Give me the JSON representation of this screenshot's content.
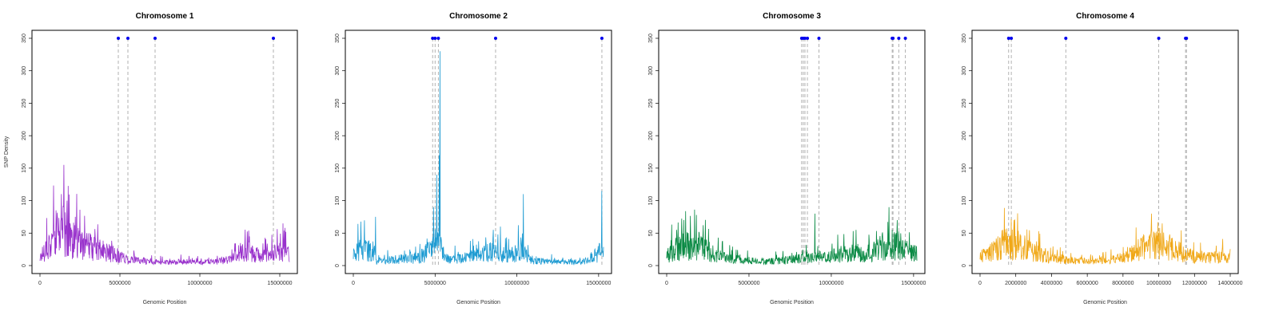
{
  "chart_data": [
    {
      "type": "line",
      "title": "Chromosome 1",
      "xlabel": "Genomic Position",
      "ylabel": "SNP Density",
      "color": "#9932CC",
      "xlim": [
        0,
        15600000
      ],
      "ylim": [
        0,
        350
      ],
      "xticks": [
        0,
        5000000,
        10000000,
        15000000
      ],
      "xtick_labels": [
        "0",
        "5000000",
        "10000000",
        "15000000"
      ],
      "yticks": [
        0,
        50,
        100,
        150,
        200,
        250,
        300,
        350
      ],
      "ytick_labels": [
        "0",
        "50",
        "100",
        "150",
        "200",
        "250",
        "300",
        "350"
      ],
      "markers_y": 350,
      "markers_x": [
        4900000,
        5500000,
        7200000,
        14600000
      ],
      "density_profile": [
        [
          0,
          12
        ],
        [
          400000,
          28
        ],
        [
          800000,
          40
        ],
        [
          1200000,
          50
        ],
        [
          1500000,
          55
        ],
        [
          1700000,
          45
        ],
        [
          2000000,
          40
        ],
        [
          2500000,
          35
        ],
        [
          3000000,
          30
        ],
        [
          3500000,
          25
        ],
        [
          4000000,
          22
        ],
        [
          4500000,
          18
        ],
        [
          5000000,
          14
        ],
        [
          5500000,
          10
        ],
        [
          6000000,
          8
        ],
        [
          7000000,
          6
        ],
        [
          8000000,
          5
        ],
        [
          9000000,
          6
        ],
        [
          10000000,
          5
        ],
        [
          11000000,
          6
        ],
        [
          12000000,
          10
        ],
        [
          12500000,
          20
        ],
        [
          13000000,
          22
        ],
        [
          13500000,
          15
        ],
        [
          14000000,
          14
        ],
        [
          14500000,
          18
        ],
        [
          15000000,
          22
        ],
        [
          15600000,
          20
        ]
      ],
      "spikes": [
        [
          1500000,
          155
        ],
        [
          1350000,
          110
        ],
        [
          1700000,
          100
        ],
        [
          2200000,
          75
        ],
        [
          1000000,
          85
        ],
        [
          15200000,
          65
        ],
        [
          13100000,
          45
        ]
      ]
    },
    {
      "type": "line",
      "title": "Chromosome 2",
      "xlabel": "Genomic Position",
      "ylabel": "",
      "color": "#1E9BD2",
      "xlim": [
        0,
        15300000
      ],
      "ylim": [
        0,
        350
      ],
      "xticks": [
        0,
        5000000,
        10000000,
        15000000
      ],
      "xtick_labels": [
        "0",
        "5000000",
        "10000000",
        "15000000"
      ],
      "yticks": [
        0,
        50,
        100,
        150,
        200,
        250,
        300,
        350
      ],
      "ytick_labels": [
        "0",
        "50",
        "100",
        "150",
        "200",
        "250",
        "300",
        "350"
      ],
      "markers_y": 350,
      "markers_x": [
        4850000,
        5000000,
        5200000,
        8700000,
        15200000
      ],
      "density_profile": [
        [
          0,
          15
        ],
        [
          300000,
          22
        ],
        [
          700000,
          25
        ],
        [
          1000000,
          22
        ],
        [
          1300000,
          18
        ],
        [
          1400000,
          6
        ],
        [
          2000000,
          8
        ],
        [
          3000000,
          10
        ],
        [
          4000000,
          12
        ],
        [
          4500000,
          20
        ],
        [
          4800000,
          30
        ],
        [
          5000000,
          35
        ],
        [
          5300000,
          30
        ],
        [
          5600000,
          15
        ],
        [
          6000000,
          10
        ],
        [
          7000000,
          12
        ],
        [
          8000000,
          18
        ],
        [
          8600000,
          25
        ],
        [
          9000000,
          20
        ],
        [
          9500000,
          15
        ],
        [
          10000000,
          20
        ],
        [
          10300000,
          30
        ],
        [
          10600000,
          15
        ],
        [
          11000000,
          8
        ],
        [
          12000000,
          6
        ],
        [
          13000000,
          5
        ],
        [
          14000000,
          6
        ],
        [
          14800000,
          15
        ],
        [
          15300000,
          25
        ]
      ],
      "spikes": [
        [
          5300000,
          330
        ],
        [
          5250000,
          170
        ],
        [
          5100000,
          140
        ],
        [
          1350000,
          75
        ],
        [
          10400000,
          110
        ],
        [
          15200000,
          115
        ],
        [
          9000000,
          60
        ],
        [
          4900000,
          90
        ]
      ]
    },
    {
      "type": "line",
      "title": "Chromosome 3",
      "xlabel": "Genomic Position",
      "ylabel": "",
      "color": "#0A8A44",
      "xlim": [
        0,
        15200000
      ],
      "ylim": [
        0,
        350
      ],
      "xticks": [
        0,
        5000000,
        10000000,
        15000000
      ],
      "xtick_labels": [
        "0",
        "5000000",
        "10000000",
        "15000000"
      ],
      "yticks": [
        0,
        50,
        100,
        150,
        200,
        250,
        300,
        350
      ],
      "ytick_labels": [
        "0",
        "50",
        "100",
        "150",
        "200",
        "250",
        "300",
        "350"
      ],
      "markers_y": 350,
      "markers_x": [
        8200000,
        8300000,
        8400000,
        8550000,
        9250000,
        13700000,
        13750000,
        14100000,
        14500000
      ],
      "density_profile": [
        [
          0,
          15
        ],
        [
          500000,
          25
        ],
        [
          1000000,
          30
        ],
        [
          1500000,
          28
        ],
        [
          2000000,
          30
        ],
        [
          2500000,
          22
        ],
        [
          3000000,
          15
        ],
        [
          4000000,
          10
        ],
        [
          5000000,
          8
        ],
        [
          6000000,
          6
        ],
        [
          7000000,
          8
        ],
        [
          8000000,
          10
        ],
        [
          9000000,
          12
        ],
        [
          10000000,
          15
        ],
        [
          11000000,
          18
        ],
        [
          12000000,
          20
        ],
        [
          13000000,
          25
        ],
        [
          14000000,
          28
        ],
        [
          14500000,
          22
        ],
        [
          15200000,
          20
        ]
      ],
      "spikes": [
        [
          1800000,
          78
        ],
        [
          9000000,
          80
        ],
        [
          13500000,
          90
        ],
        [
          14000000,
          70
        ],
        [
          600000,
          55
        ],
        [
          11500000,
          55
        ]
      ]
    },
    {
      "type": "line",
      "title": "Chromosome 4",
      "xlabel": "Genomic Position",
      "ylabel": "",
      "color": "#F0A818",
      "xlim": [
        0,
        14000000
      ],
      "ylim": [
        0,
        350
      ],
      "xticks": [
        0,
        2000000,
        4000000,
        6000000,
        8000000,
        10000000,
        12000000,
        14000000
      ],
      "xtick_labels": [
        "0",
        "2000000",
        "4000000",
        "6000000",
        "8000000",
        "10000000",
        "12000000",
        "14000000"
      ],
      "yticks": [
        0,
        50,
        100,
        150,
        200,
        250,
        300,
        350
      ],
      "ytick_labels": [
        "0",
        "50",
        "100",
        "150",
        "200",
        "250",
        "300",
        "350"
      ],
      "markers_y": 350,
      "markers_x": [
        1600000,
        1750000,
        4800000,
        10000000,
        11500000,
        11550000
      ],
      "density_profile": [
        [
          0,
          12
        ],
        [
          500000,
          22
        ],
        [
          1000000,
          28
        ],
        [
          1500000,
          35
        ],
        [
          2000000,
          30
        ],
        [
          2500000,
          28
        ],
        [
          3000000,
          20
        ],
        [
          4000000,
          12
        ],
        [
          5000000,
          8
        ],
        [
          6000000,
          6
        ],
        [
          7000000,
          8
        ],
        [
          8000000,
          12
        ],
        [
          8500000,
          18
        ],
        [
          9000000,
          25
        ],
        [
          9500000,
          35
        ],
        [
          10000000,
          38
        ],
        [
          10500000,
          30
        ],
        [
          11000000,
          22
        ],
        [
          12000000,
          14
        ],
        [
          13000000,
          12
        ],
        [
          14000000,
          15
        ]
      ],
      "spikes": [
        [
          9600000,
          80
        ],
        [
          1900000,
          70
        ],
        [
          10200000,
          65
        ],
        [
          1000000,
          45
        ]
      ]
    }
  ]
}
